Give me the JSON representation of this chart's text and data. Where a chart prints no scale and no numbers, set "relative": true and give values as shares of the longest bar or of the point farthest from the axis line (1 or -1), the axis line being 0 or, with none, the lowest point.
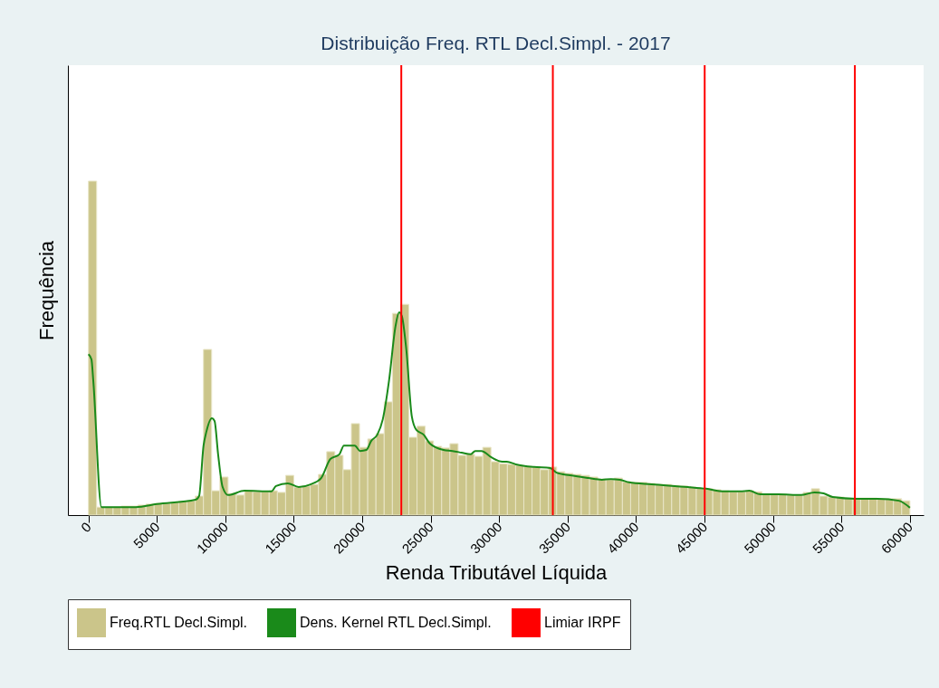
{
  "chart_data": {
    "type": "histogram",
    "title": "Distribuição Freq. RTL Decl.Simpl. - 2017",
    "xlabel": "Renda Tributável Líquida",
    "ylabel": "Frequência",
    "relative": true,
    "legend": "bottom",
    "xlim": [
      -1500,
      61000
    ],
    "xticks": [
      0,
      5000,
      10000,
      15000,
      20000,
      25000,
      30000,
      35000,
      40000,
      45000,
      50000,
      55000,
      60000
    ],
    "bins": [
      0,
      600,
      1200,
      1800,
      2400,
      3000,
      3600,
      4200,
      4800,
      5400,
      6000,
      6600,
      7200,
      7800,
      8400,
      9000,
      9600,
      10200,
      10800,
      11400,
      12000,
      12600,
      13200,
      13800,
      14400,
      15000,
      15600,
      16200,
      16800,
      17400,
      18000,
      18600,
      19200,
      19800,
      20400,
      21000,
      21600,
      22200,
      22800,
      23400,
      24000,
      24600,
      25200,
      25800,
      26400,
      27000,
      27600,
      28200,
      28800,
      29400,
      30000,
      30600,
      31200,
      31800,
      32400,
      33000,
      33600,
      34200,
      34800,
      35400,
      36000,
      36600,
      37200,
      37800,
      38400,
      39000,
      39600,
      40200,
      40800,
      41400,
      42000,
      42600,
      43200,
      43800,
      44400,
      45000,
      45600,
      46200,
      46800,
      47400,
      48000,
      48600,
      49200,
      49800,
      50400,
      51000,
      51600,
      52200,
      52800,
      53400,
      54000,
      54600,
      55200,
      55800,
      56400,
      57000,
      57600,
      58200,
      58800,
      59400,
      60000
    ],
    "series": [
      {
        "name": "Freq.RTL Decl.Simpl.",
        "color": "#cbc58a",
        "values": [
          1.0,
          0.024,
          0.024,
          0.024,
          0.027,
          0.027,
          0.03,
          0.033,
          0.035,
          0.035,
          0.038,
          0.041,
          0.043,
          0.057,
          0.496,
          0.073,
          0.114,
          0.065,
          0.06,
          0.073,
          0.07,
          0.07,
          0.073,
          0.068,
          0.119,
          0.084,
          0.087,
          0.092,
          0.122,
          0.19,
          0.179,
          0.136,
          0.274,
          0.203,
          0.228,
          0.244,
          0.339,
          0.604,
          0.631,
          0.233,
          0.266,
          0.222,
          0.206,
          0.201,
          0.214,
          0.179,
          0.182,
          0.176,
          0.203,
          0.16,
          0.154,
          0.152,
          0.149,
          0.146,
          0.144,
          0.136,
          0.144,
          0.13,
          0.125,
          0.122,
          0.119,
          0.114,
          0.108,
          0.106,
          0.111,
          0.1,
          0.098,
          0.098,
          0.095,
          0.092,
          0.092,
          0.089,
          0.087,
          0.084,
          0.081,
          0.079,
          0.076,
          0.073,
          0.07,
          0.07,
          0.073,
          0.07,
          0.062,
          0.062,
          0.062,
          0.06,
          0.06,
          0.068,
          0.079,
          0.057,
          0.054,
          0.054,
          0.051,
          0.051,
          0.051,
          0.051,
          0.049,
          0.049,
          0.049,
          0.043
        ]
      },
      {
        "name": "Dens. Kernel RTL Decl.Simpl.",
        "type": "line",
        "color": "#1a8a1a",
        "x": [
          0,
          220,
          350,
          950,
          3460,
          5000,
          7820,
          8080,
          8410,
          8610,
          9010,
          9210,
          9470,
          9800,
          10200,
          11400,
          13370,
          13700,
          14560,
          15360,
          16220,
          17000,
          17670,
          18330,
          18660,
          19450,
          19850,
          20300,
          20650,
          21100,
          21500,
          21960,
          22430,
          22690,
          22890,
          23220,
          23620,
          23950,
          24480,
          24940,
          25930,
          26590,
          27250,
          27910,
          28250,
          28710,
          29430,
          30230,
          30560,
          31220,
          32540,
          33730,
          34190,
          35180,
          36510,
          37500,
          38160,
          38820,
          39480,
          41140,
          43780,
          45100,
          46420,
          47600,
          48270,
          49070,
          50390,
          52040,
          53030,
          53700,
          54360,
          56010,
          57670,
          59190,
          60000
        ],
        "values": [
          0.482,
          0.466,
          0.404,
          0.024,
          0.024,
          0.033,
          0.046,
          0.057,
          0.209,
          0.249,
          0.29,
          0.282,
          0.182,
          0.084,
          0.06,
          0.073,
          0.071,
          0.087,
          0.095,
          0.084,
          0.092,
          0.111,
          0.168,
          0.182,
          0.208,
          0.208,
          0.192,
          0.195,
          0.222,
          0.241,
          0.287,
          0.404,
          0.566,
          0.607,
          0.596,
          0.494,
          0.295,
          0.255,
          0.241,
          0.214,
          0.195,
          0.192,
          0.187,
          0.182,
          0.192,
          0.192,
          0.173,
          0.16,
          0.16,
          0.152,
          0.144,
          0.141,
          0.127,
          0.119,
          0.111,
          0.106,
          0.108,
          0.106,
          0.098,
          0.092,
          0.084,
          0.079,
          0.071,
          0.071,
          0.073,
          0.062,
          0.062,
          0.06,
          0.068,
          0.065,
          0.054,
          0.049,
          0.049,
          0.043,
          0.022
        ]
      }
    ],
    "ref_lines": [
      {
        "axis": "x",
        "value": 22850,
        "label": "Limiar IRPF",
        "color": "#ff0000"
      },
      {
        "axis": "x",
        "value": 33920,
        "color": "#ff0000"
      },
      {
        "axis": "x",
        "value": 45010,
        "color": "#ff0000"
      },
      {
        "axis": "x",
        "value": 55980,
        "color": "#ff0000"
      }
    ]
  }
}
